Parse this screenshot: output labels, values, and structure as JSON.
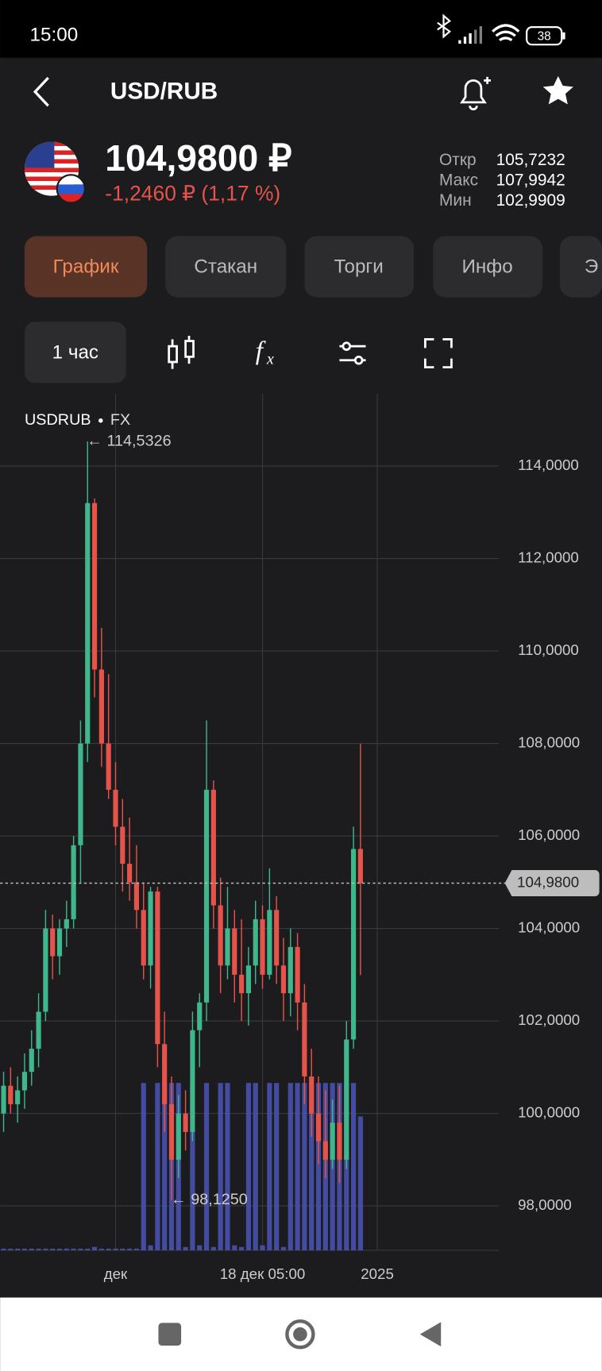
{
  "status_bar": {
    "time": "15:00",
    "battery": "38"
  },
  "header": {
    "title": "USD/RUB"
  },
  "quote": {
    "price": "104,9800 ₽",
    "change": "-1,2460 ₽ (1,17 %)",
    "stats": [
      {
        "label": "Откр",
        "value": "105,7232"
      },
      {
        "label": "Макс",
        "value": "107,9942"
      },
      {
        "label": "Мин",
        "value": "102,9909"
      }
    ]
  },
  "tabs": [
    "График",
    "Стакан",
    "Торги",
    "Инфо",
    "Э"
  ],
  "toolbar": {
    "interval": "1 час"
  },
  "chart_data": {
    "type": "candlestick",
    "title": "USDRUB",
    "subtitle": "FX",
    "x": [
      0,
      1,
      2,
      3,
      4,
      5,
      6,
      7,
      8,
      9,
      10,
      11,
      12,
      13,
      14,
      15,
      16,
      17,
      18,
      19,
      20,
      21,
      22,
      23,
      24,
      25,
      26,
      27,
      28,
      29,
      30,
      31,
      32,
      33,
      34,
      35,
      36,
      37,
      38,
      39,
      40,
      41,
      42,
      43,
      44,
      45,
      46,
      47,
      48,
      49,
      50,
      51
    ],
    "open": [
      100.0,
      100.6,
      100.2,
      100.5,
      100.9,
      101.4,
      102.2,
      104.0,
      103.4,
      104.0,
      104.2,
      105.8,
      108.0,
      113.2,
      109.6,
      108.0,
      107.0,
      106.2,
      105.4,
      105.0,
      104.4,
      103.2,
      104.8,
      101.5,
      100.2,
      99.0,
      100.0,
      99.6,
      101.8,
      102.4,
      107.0,
      104.5,
      103.2,
      104.0,
      103.0,
      102.6,
      103.2,
      104.2,
      103.0,
      104.4,
      103.2,
      102.6,
      103.6,
      102.4,
      100.8,
      100.0,
      99.4,
      99.0,
      99.8,
      99.0,
      101.6,
      105.72
    ],
    "high": [
      100.9,
      101.0,
      100.8,
      101.3,
      101.8,
      102.6,
      104.4,
      104.3,
      104.2,
      104.6,
      106.0,
      108.5,
      114.5326,
      113.3,
      110.5,
      109.5,
      107.6,
      106.8,
      106.4,
      105.8,
      105.0,
      104.9,
      104.9,
      102.2,
      100.8,
      100.4,
      100.5,
      102.2,
      102.6,
      108.5,
      107.2,
      105.1,
      104.9,
      104.4,
      104.2,
      103.6,
      104.6,
      104.5,
      105.3,
      104.7,
      103.8,
      104.0,
      103.9,
      102.8,
      101.4,
      100.8,
      100.5,
      100.3,
      100.6,
      102.0,
      106.2,
      107.99
    ],
    "low": [
      99.6,
      100.0,
      99.8,
      100.1,
      100.6,
      101.0,
      102.0,
      102.9,
      103.0,
      103.6,
      104.0,
      105.0,
      107.6,
      109.0,
      107.5,
      106.8,
      105.8,
      104.8,
      104.6,
      104.0,
      102.9,
      102.7,
      101.0,
      99.6,
      98.125,
      98.6,
      99.2,
      99.4,
      101.0,
      102.0,
      104.0,
      102.6,
      102.9,
      102.4,
      102.0,
      101.9,
      102.8,
      102.7,
      102.9,
      102.8,
      102.0,
      102.1,
      101.8,
      100.2,
      99.5,
      98.9,
      98.6,
      98.8,
      98.5,
      98.8,
      101.4,
      102.99
    ],
    "close": [
      100.6,
      100.2,
      100.5,
      100.9,
      101.4,
      102.2,
      104.0,
      103.4,
      104.0,
      104.2,
      105.8,
      108.0,
      113.2,
      109.6,
      108.0,
      107.0,
      106.2,
      105.4,
      105.0,
      104.4,
      103.2,
      104.8,
      101.5,
      100.2,
      99.0,
      100.0,
      99.6,
      101.8,
      102.4,
      107.0,
      104.5,
      103.2,
      104.0,
      103.0,
      102.6,
      103.2,
      104.2,
      103.0,
      104.4,
      103.2,
      102.6,
      103.6,
      102.4,
      100.8,
      100.0,
      99.4,
      99.0,
      99.8,
      99.0,
      101.6,
      105.72,
      104.98
    ],
    "volume": [
      1,
      1,
      1,
      1,
      1,
      1,
      1,
      1,
      1,
      1,
      1,
      1,
      1,
      2,
      1,
      1,
      1,
      1,
      1,
      1,
      100,
      3,
      100,
      100,
      100,
      100,
      2,
      100,
      3,
      100,
      2,
      100,
      100,
      3,
      2,
      100,
      100,
      3,
      100,
      100,
      2,
      100,
      100,
      100,
      100,
      100,
      100,
      100,
      100,
      100,
      100,
      80
    ],
    "up_color": "#3fb68b",
    "down_color": "#e5534b",
    "volume_color": "#4b55b8",
    "xlim": [
      -0.5,
      70.75
    ],
    "ylim": [
      97.04,
      115.57
    ],
    "y2lim": [
      0,
      512
    ],
    "xticks": [
      {
        "value": 16,
        "label": "дек"
      },
      {
        "value": 37,
        "label": "18 дек 05:00"
      },
      {
        "value": 53.4,
        "label": "2025"
      }
    ],
    "yticks": [
      {
        "value": 98,
        "label": "98,0000"
      },
      {
        "value": 100,
        "label": "100,0000"
      },
      {
        "value": 102,
        "label": "102,0000"
      },
      {
        "value": 104,
        "label": "104,0000"
      },
      {
        "value": 106,
        "label": "106,0000"
      },
      {
        "value": 108,
        "label": "108,0000"
      },
      {
        "value": 110,
        "label": "110,0000"
      },
      {
        "value": 112,
        "label": "112,0000"
      },
      {
        "value": 114,
        "label": "114,0000"
      }
    ],
    "grid": true,
    "last_price": {
      "value": 104.98,
      "label": "104,9800"
    },
    "annotations": [
      {
        "x": 12,
        "value": 114.5326,
        "label": "← 114,5326"
      },
      {
        "x": 24,
        "value": 98.125,
        "label": "← 98,1250"
      }
    ]
  }
}
